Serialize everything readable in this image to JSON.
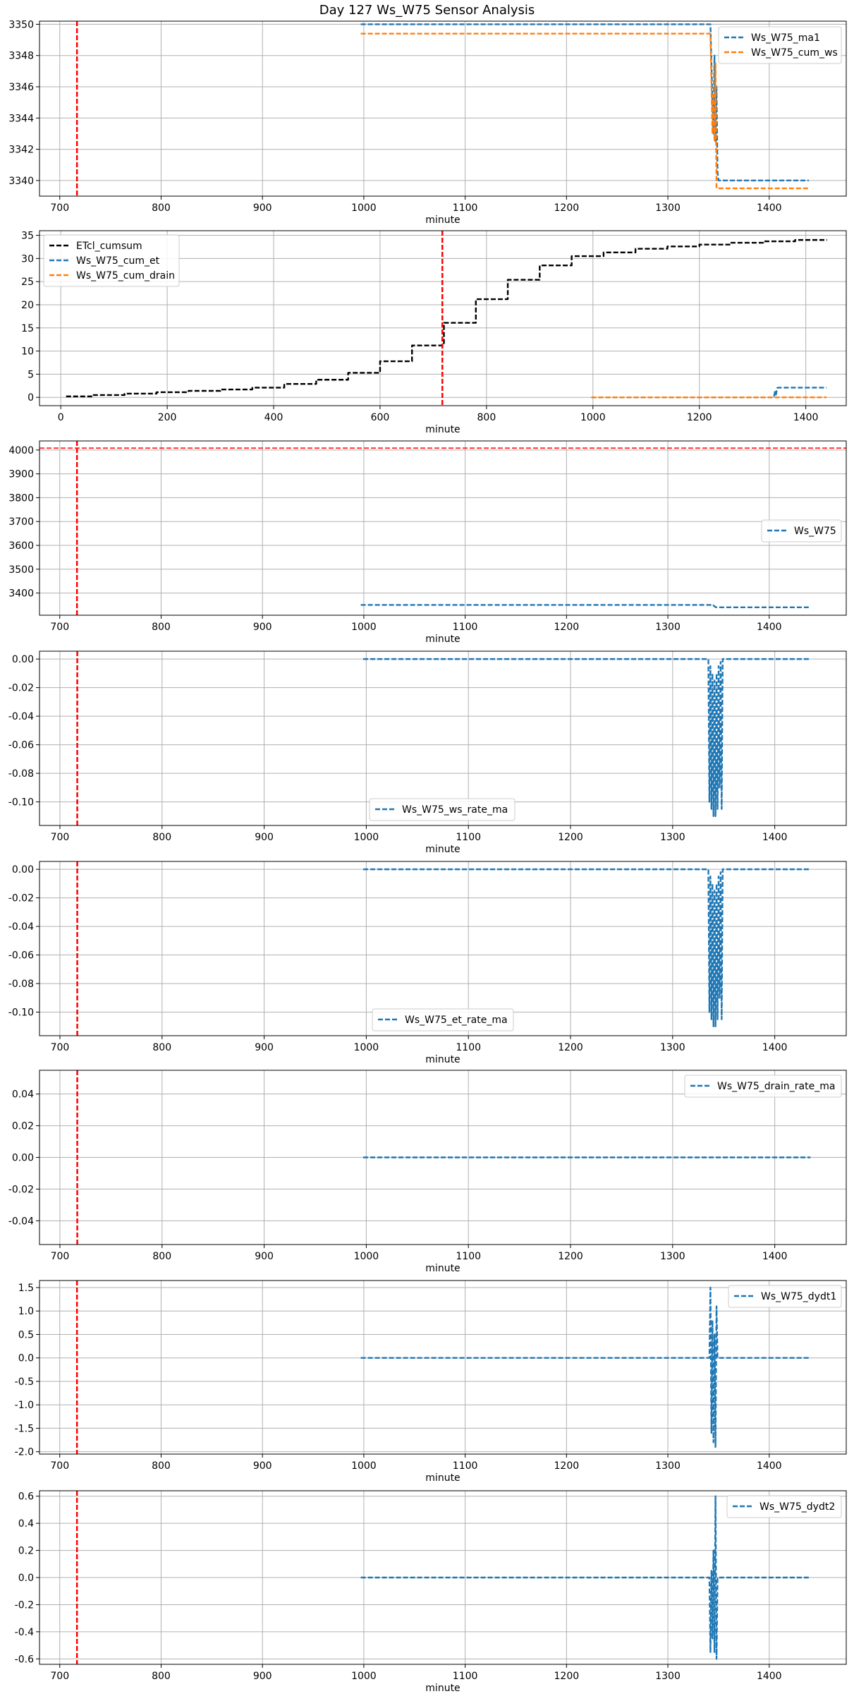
{
  "title": "Day 127 Ws_W75 Sensor Analysis",
  "colors": {
    "blue": "#1f77b4",
    "orange": "#ff7f0e",
    "black": "#000000",
    "red": "#ff0000",
    "grid": "#b0b0b0"
  },
  "chart_data": [
    {
      "type": "line",
      "xlabel": "minute",
      "xlim": [
        680,
        1476
      ],
      "ylim": [
        3339,
        3350.2
      ],
      "xticks": [
        700,
        800,
        900,
        1000,
        1100,
        1200,
        1300,
        1400
      ],
      "yticks": [
        3340,
        3342,
        3344,
        3346,
        3348,
        3350
      ],
      "ytick_labels": [
        "3340",
        "3342",
        "3344",
        "3346",
        "3348",
        "3350"
      ],
      "vline_x": 717,
      "legend_loc": "upper-right",
      "grid": true,
      "series": [
        {
          "name": "Ws_W75_ma1",
          "color": "#1f77b4",
          "points": [
            [
              997,
              3350
            ],
            [
              1342,
              3350
            ],
            [
              1344,
              3345
            ],
            [
              1345,
              3343
            ],
            [
              1346,
              3348
            ],
            [
              1347,
              3342.5
            ],
            [
              1348,
              3346
            ],
            [
              1349,
              3340.5
            ],
            [
              1350,
              3340
            ],
            [
              1439,
              3340
            ]
          ]
        },
        {
          "name": "Ws_W75_cum_ws",
          "color": "#ff7f0e",
          "points": [
            [
              997,
              3349.4
            ],
            [
              1342,
              3349.4
            ],
            [
              1344,
              3343
            ],
            [
              1345,
              3345.5
            ],
            [
              1346,
              3342.5
            ],
            [
              1347,
              3347.5
            ],
            [
              1348,
              3339.5
            ],
            [
              1349,
              3339.5
            ],
            [
              1439,
              3339.5
            ]
          ]
        }
      ]
    },
    {
      "type": "line",
      "xlabel": "minute",
      "xlim": [
        -40,
        1476
      ],
      "ylim": [
        -1.8,
        36
      ],
      "xticks": [
        0,
        200,
        400,
        600,
        800,
        1000,
        1200,
        1400
      ],
      "yticks": [
        0,
        5,
        10,
        15,
        20,
        25,
        30,
        35
      ],
      "ytick_labels": [
        "0",
        "5",
        "10",
        "15",
        "20",
        "25",
        "30",
        "35"
      ],
      "vline_x": 717,
      "legend_loc": "upper-left",
      "grid": true,
      "series": [
        {
          "name": "ETcl_cumsum",
          "color": "#000000",
          "step": true,
          "points": [
            [
              10,
              0.2
            ],
            [
              60,
              0.5
            ],
            [
              120,
              0.8
            ],
            [
              180,
              1.1
            ],
            [
              240,
              1.4
            ],
            [
              300,
              1.7
            ],
            [
              360,
              2.1
            ],
            [
              420,
              2.9
            ],
            [
              480,
              3.8
            ],
            [
              540,
              5.3
            ],
            [
              600,
              7.8
            ],
            [
              660,
              11.2
            ],
            [
              720,
              16.1
            ],
            [
              780,
              21.2
            ],
            [
              840,
              25.4
            ],
            [
              900,
              28.5
            ],
            [
              960,
              30.5
            ],
            [
              1020,
              31.3
            ],
            [
              1080,
              32.1
            ],
            [
              1140,
              32.6
            ],
            [
              1200,
              33.0
            ],
            [
              1260,
              33.4
            ],
            [
              1320,
              33.7
            ],
            [
              1380,
              34.0
            ],
            [
              1440,
              34.0
            ]
          ]
        },
        {
          "name": "Ws_W75_cum_et",
          "color": "#1f77b4",
          "points": [
            [
              997,
              0
            ],
            [
              1340,
              0
            ],
            [
              1342,
              1.2
            ],
            [
              1344,
              0.6
            ],
            [
              1346,
              2.0
            ],
            [
              1348,
              2.1
            ],
            [
              1439,
              2.1
            ]
          ]
        },
        {
          "name": "Ws_W75_cum_drain",
          "color": "#ff7f0e",
          "points": [
            [
              997,
              0
            ],
            [
              1439,
              0
            ]
          ]
        }
      ]
    },
    {
      "type": "line",
      "xlabel": "minute",
      "xlim": [
        680,
        1476
      ],
      "ylim": [
        3307,
        4038
      ],
      "xticks": [
        700,
        800,
        900,
        1000,
        1100,
        1200,
        1300,
        1400
      ],
      "yticks": [
        3400,
        3500,
        3600,
        3700,
        3800,
        3900,
        4000
      ],
      "ytick_labels": [
        "3400",
        "3500",
        "3600",
        "3700",
        "3800",
        "3900",
        "4000"
      ],
      "vline_x": 717,
      "hline_y": 4008,
      "legend_loc": "center-right",
      "grid": true,
      "series": [
        {
          "name": "Ws_W75",
          "color": "#1f77b4",
          "points": [
            [
              997,
              3350
            ],
            [
              1342,
              3350
            ],
            [
              1344,
              3345
            ],
            [
              1345,
              3348
            ],
            [
              1347,
              3341
            ],
            [
              1349,
              3340
            ],
            [
              1439,
              3340
            ]
          ]
        }
      ]
    },
    {
      "type": "line",
      "xlabel": "minute",
      "xlim": [
        680,
        1470
      ],
      "ylim": [
        -0.1165,
        0.0055
      ],
      "xticks": [
        700,
        800,
        900,
        1000,
        1100,
        1200,
        1300,
        1400
      ],
      "yticks": [
        0,
        -0.02,
        -0.04,
        -0.06,
        -0.08,
        -0.1
      ],
      "ytick_labels": [
        "0.00",
        "-0.02",
        "-0.04",
        "-0.06",
        "-0.08",
        "-0.10"
      ],
      "vline_x": 717,
      "legend_loc": "lower-center",
      "grid": true,
      "series": [
        {
          "name": "Ws_W75_ws_rate_ma",
          "color": "#1f77b4",
          "points": [
            [
              997,
              0
            ],
            [
              1335,
              0
            ],
            [
              1336,
              -0.1
            ],
            [
              1337,
              -0.005
            ],
            [
              1338,
              -0.105
            ],
            [
              1339,
              -0.01
            ],
            [
              1340,
              -0.11
            ],
            [
              1341,
              -0.015
            ],
            [
              1342,
              -0.11
            ],
            [
              1343,
              -0.01
            ],
            [
              1344,
              -0.105
            ],
            [
              1345,
              -0.005
            ],
            [
              1346,
              -0.09
            ],
            [
              1347,
              -0.002
            ],
            [
              1348,
              -0.105
            ],
            [
              1349,
              0
            ],
            [
              1435,
              0
            ]
          ]
        }
      ]
    },
    {
      "type": "line",
      "xlabel": "minute",
      "xlim": [
        680,
        1470
      ],
      "ylim": [
        -0.1165,
        0.0055
      ],
      "xticks": [
        700,
        800,
        900,
        1000,
        1100,
        1200,
        1300,
        1400
      ],
      "yticks": [
        0,
        -0.02,
        -0.04,
        -0.06,
        -0.08,
        -0.1
      ],
      "ytick_labels": [
        "0.00",
        "-0.02",
        "-0.04",
        "-0.06",
        "-0.08",
        "-0.10"
      ],
      "vline_x": 717,
      "legend_loc": "lower-center",
      "grid": true,
      "series": [
        {
          "name": "Ws_W75_et_rate_ma",
          "color": "#1f77b4",
          "points": [
            [
              997,
              0
            ],
            [
              1335,
              0
            ],
            [
              1336,
              -0.1
            ],
            [
              1337,
              -0.005
            ],
            [
              1338,
              -0.105
            ],
            [
              1339,
              -0.01
            ],
            [
              1340,
              -0.11
            ],
            [
              1341,
              -0.015
            ],
            [
              1342,
              -0.11
            ],
            [
              1343,
              -0.01
            ],
            [
              1344,
              -0.105
            ],
            [
              1345,
              -0.005
            ],
            [
              1346,
              -0.09
            ],
            [
              1347,
              -0.002
            ],
            [
              1348,
              -0.105
            ],
            [
              1349,
              0
            ],
            [
              1435,
              0
            ]
          ]
        }
      ]
    },
    {
      "type": "line",
      "xlabel": "minute",
      "xlim": [
        680,
        1470
      ],
      "ylim": [
        -0.055,
        0.055
      ],
      "xticks": [
        700,
        800,
        900,
        1000,
        1100,
        1200,
        1300,
        1400
      ],
      "yticks": [
        -0.04,
        -0.02,
        0,
        0.02,
        0.04
      ],
      "ytick_labels": [
        "-0.04",
        "-0.02",
        "0.00",
        "0.02",
        "0.04"
      ],
      "vline_x": 717,
      "legend_loc": "upper-right",
      "grid": true,
      "series": [
        {
          "name": "Ws_W75_drain_rate_ma",
          "color": "#1f77b4",
          "points": [
            [
              997,
              0
            ],
            [
              1435,
              0
            ]
          ]
        }
      ]
    },
    {
      "type": "line",
      "xlabel": "minute",
      "xlim": [
        680,
        1476
      ],
      "ylim": [
        -2.05,
        1.65
      ],
      "xticks": [
        700,
        800,
        900,
        1000,
        1100,
        1200,
        1300,
        1400
      ],
      "yticks": [
        -2.0,
        -1.5,
        -1.0,
        -0.5,
        0,
        0.5,
        1.0,
        1.5
      ],
      "ytick_labels": [
        "-2.0",
        "-1.5",
        "-1.0",
        "-0.5",
        "0.0",
        "0.5",
        "1.0",
        "1.5"
      ],
      "vline_x": 717,
      "legend_loc": "upper-right",
      "grid": true,
      "series": [
        {
          "name": "Ws_W75_dydt1",
          "color": "#1f77b4",
          "points": [
            [
              997,
              0
            ],
            [
              1341,
              0
            ],
            [
              1342,
              1.5
            ],
            [
              1343,
              -1.6
            ],
            [
              1344,
              0.8
            ],
            [
              1345,
              -1.8
            ],
            [
              1346,
              0.5
            ],
            [
              1347,
              -1.9
            ],
            [
              1348,
              1.1
            ],
            [
              1349,
              0
            ],
            [
              1439,
              0
            ]
          ]
        }
      ]
    },
    {
      "type": "line",
      "xlabel": "minute",
      "xlim": [
        680,
        1476
      ],
      "ylim": [
        -0.64,
        0.64
      ],
      "xticks": [
        700,
        800,
        900,
        1000,
        1100,
        1200,
        1300,
        1400
      ],
      "yticks": [
        -0.6,
        -0.4,
        -0.2,
        0,
        0.2,
        0.4,
        0.6
      ],
      "ytick_labels": [
        "-0.6",
        "-0.4",
        "-0.2",
        "0.0",
        "0.2",
        "0.4",
        "0.6"
      ],
      "vline_x": 717,
      "legend_loc": "upper-right",
      "grid": true,
      "series": [
        {
          "name": "Ws_W75_dydt2",
          "color": "#1f77b4",
          "points": [
            [
              997,
              0
            ],
            [
              1341,
              0
            ],
            [
              1342,
              -0.55
            ],
            [
              1343,
              0.05
            ],
            [
              1344,
              -0.45
            ],
            [
              1345,
              0.2
            ],
            [
              1346,
              -0.55
            ],
            [
              1347,
              0.6
            ],
            [
              1348,
              -0.6
            ],
            [
              1349,
              0
            ],
            [
              1439,
              0
            ]
          ]
        }
      ]
    }
  ]
}
